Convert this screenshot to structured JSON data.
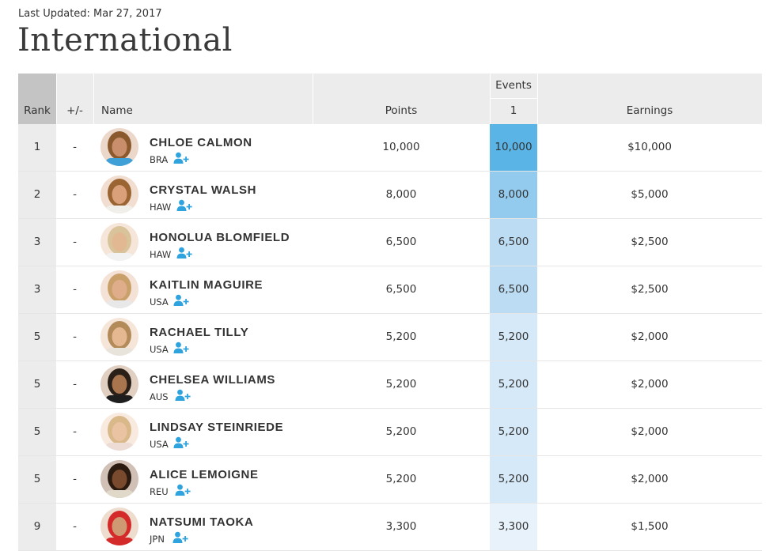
{
  "last_updated": "Last Updated: Mar 27, 2017",
  "title": "International",
  "columns": {
    "rank": "Rank",
    "change": "+/-",
    "name": "Name",
    "points": "Points",
    "events": "Events",
    "event_1": "1",
    "earnings": "Earnings"
  },
  "rows": [
    {
      "rank": "1",
      "change": "-",
      "name": "CHLOE CALMON",
      "country": "BRA",
      "points": "10,000",
      "event1": "10,000",
      "earnings": "$10,000",
      "event_color": "#5ab4e5",
      "skin": "#c98e6b",
      "hair": "#8a5a2e",
      "shirt": "#3fa0d8"
    },
    {
      "rank": "2",
      "change": "-",
      "name": "CRYSTAL WALSH",
      "country": "HAW",
      "points": "8,000",
      "event1": "8,000",
      "earnings": "$5,000",
      "event_color": "#93cbee",
      "skin": "#d9a07a",
      "hair": "#9a6532",
      "shirt": "#f0efe9"
    },
    {
      "rank": "3",
      "change": "-",
      "name": "HONOLUA BLOMFIELD",
      "country": "HAW",
      "points": "6,500",
      "event1": "6,500",
      "earnings": "$2,500",
      "event_color": "#bcdcf3",
      "skin": "#e2b892",
      "hair": "#d8c39a",
      "shirt": "#f2f2f2"
    },
    {
      "rank": "3",
      "change": "-",
      "name": "KAITLIN MAGUIRE",
      "country": "USA",
      "points": "6,500",
      "event1": "6,500",
      "earnings": "$2,500",
      "event_color": "#bcdcf3",
      "skin": "#e0ad8a",
      "hair": "#caa06a",
      "shirt": "#e8e8e8"
    },
    {
      "rank": "5",
      "change": "-",
      "name": "RACHAEL TILLY",
      "country": "USA",
      "points": "5,200",
      "event1": "5,200",
      "earnings": "$2,000",
      "event_color": "#d6e9f8",
      "skin": "#e5b892",
      "hair": "#b38b5a",
      "shirt": "#e8e4dc"
    },
    {
      "rank": "5",
      "change": "-",
      "name": "CHELSEA WILLIAMS",
      "country": "AUS",
      "points": "5,200",
      "event1": "5,200",
      "earnings": "$2,000",
      "event_color": "#d6e9f8",
      "skin": "#a8754f",
      "hair": "#2a2018",
      "shirt": "#1e1e1e"
    },
    {
      "rank": "5",
      "change": "-",
      "name": "LINDSAY STEINRIEDE",
      "country": "USA",
      "points": "5,200",
      "event1": "5,200",
      "earnings": "$2,000",
      "event_color": "#d6e9f8",
      "skin": "#eac3a2",
      "hair": "#d9b88a",
      "shirt": "#ecdcd5"
    },
    {
      "rank": "5",
      "change": "-",
      "name": "ALICE LEMOIGNE",
      "country": "REU",
      "points": "5,200",
      "event1": "5,200",
      "earnings": "$2,000",
      "event_color": "#d6e9f8",
      "skin": "#7a4a2e",
      "hair": "#2a1a10",
      "shirt": "#e0d8c8"
    },
    {
      "rank": "9",
      "change": "-",
      "name": "NATSUMI TAOKA",
      "country": "JPN",
      "points": "3,300",
      "event1": "3,300",
      "earnings": "$1,500",
      "event_color": "#e8f2fb",
      "skin": "#cf9a73",
      "hair": "#d52a2a",
      "shirt": "#d52a2a"
    }
  ],
  "icons": {
    "follow": "add-user-icon"
  },
  "colors": {
    "accent": "#2ea3dd"
  }
}
